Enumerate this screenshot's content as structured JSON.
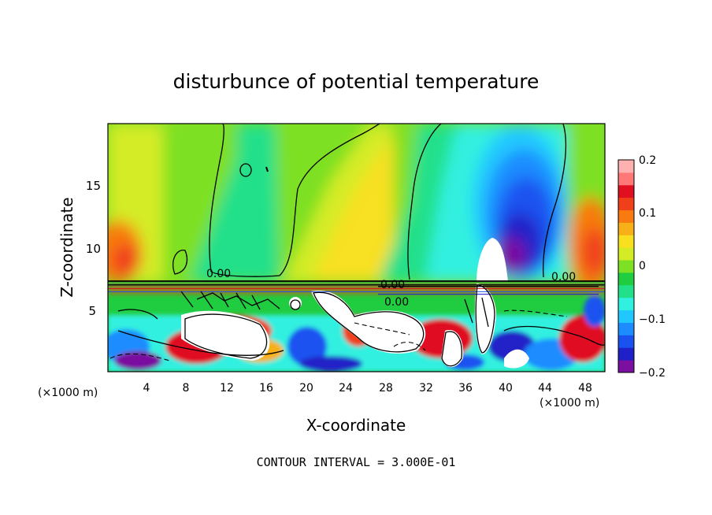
{
  "chart_data": {
    "type": "heatmap",
    "title": "disturbunce of potential temperature",
    "xlabel": "X-coordinate",
    "ylabel": "Z-coordinate",
    "x_unit_left": "(×1000 m)",
    "x_unit_right": "(×1000 m)",
    "xticks": [
      "4",
      "8",
      "12",
      "16",
      "20",
      "24",
      "28",
      "32",
      "36",
      "40",
      "44",
      "48"
    ],
    "yticks": [
      "5",
      "10",
      "15"
    ],
    "xlim": [
      0,
      50
    ],
    "ylim": [
      0,
      20
    ],
    "colorbar": {
      "ticks": [
        "0.2",
        "0.1",
        "0",
        "−0.1",
        "−0.2"
      ],
      "range": [
        -0.2,
        0.2
      ],
      "colors": [
        "#7a0fa0",
        "#2020c8",
        "#1a52f0",
        "#1c8cff",
        "#20c8ff",
        "#30f0e0",
        "#22e08a",
        "#20cc40",
        "#7ee024",
        "#d4ec26",
        "#f8e020",
        "#f8b018",
        "#f87a10",
        "#f0401a",
        "#e01020",
        "#ff7878",
        "#ffb0b0"
      ]
    },
    "contour_labels": [
      "0.00",
      "0.00",
      "0.00",
      "0.00"
    ],
    "footnote": "CONTOUR INTERVAL = 3.000E-01"
  }
}
